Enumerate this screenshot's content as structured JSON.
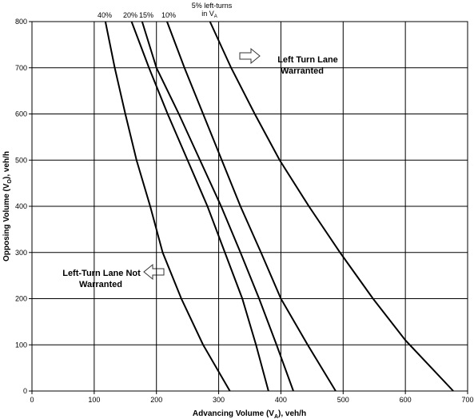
{
  "chart_data": {
    "type": "line",
    "x_label": [
      "Advancing Volume (V",
      "A",
      "), veh/h"
    ],
    "y_label": [
      "Opposing Volume (V",
      "O",
      "), veh/h"
    ],
    "xlim": [
      0,
      700
    ],
    "xticks": [
      0,
      100,
      200,
      300,
      400,
      500,
      600,
      700
    ],
    "ylim": [
      0,
      800
    ],
    "yticks": [
      0,
      100,
      200,
      300,
      400,
      500,
      600,
      700,
      800
    ],
    "grid": true,
    "series": [
      {
        "name": "40%",
        "color": "#000000",
        "x": [
          118,
          133,
          150,
          168,
          190,
          210,
          240,
          275,
          318
        ],
        "values": [
          800,
          700,
          600,
          500,
          400,
          300,
          200,
          100,
          0
        ]
      },
      {
        "name": "20%",
        "color": "#000000",
        "x": [
          160,
          188,
          218,
          250,
          282,
          310,
          338,
          360,
          380
        ],
        "values": [
          800,
          700,
          600,
          500,
          400,
          300,
          200,
          100,
          0
        ]
      },
      {
        "name": "15%",
        "color": "#000000",
        "x": [
          177,
          200,
          236,
          270,
          304,
          335,
          365,
          393,
          420
        ],
        "values": [
          800,
          700,
          600,
          500,
          400,
          300,
          200,
          100,
          0
        ]
      },
      {
        "name": "10%",
        "color": "#000000",
        "x": [
          217,
          245,
          275,
          305,
          335,
          368,
          400,
          443,
          488
        ],
        "values": [
          800,
          700,
          600,
          500,
          400,
          300,
          200,
          100,
          0
        ]
      },
      {
        "name": "5% left-turns",
        "color": "#000000",
        "x": [
          286,
          320,
          358,
          398,
          445,
          495,
          548,
          600,
          677
        ],
        "values": [
          800,
          700,
          600,
          500,
          400,
          300,
          200,
          110,
          0
        ]
      }
    ],
    "curve_note": [
      "in V",
      "A"
    ],
    "annotations": [
      [
        "Left Turn Lane",
        "Warranted"
      ],
      [
        "Left-Turn Lane Not",
        "Warranted"
      ]
    ]
  }
}
